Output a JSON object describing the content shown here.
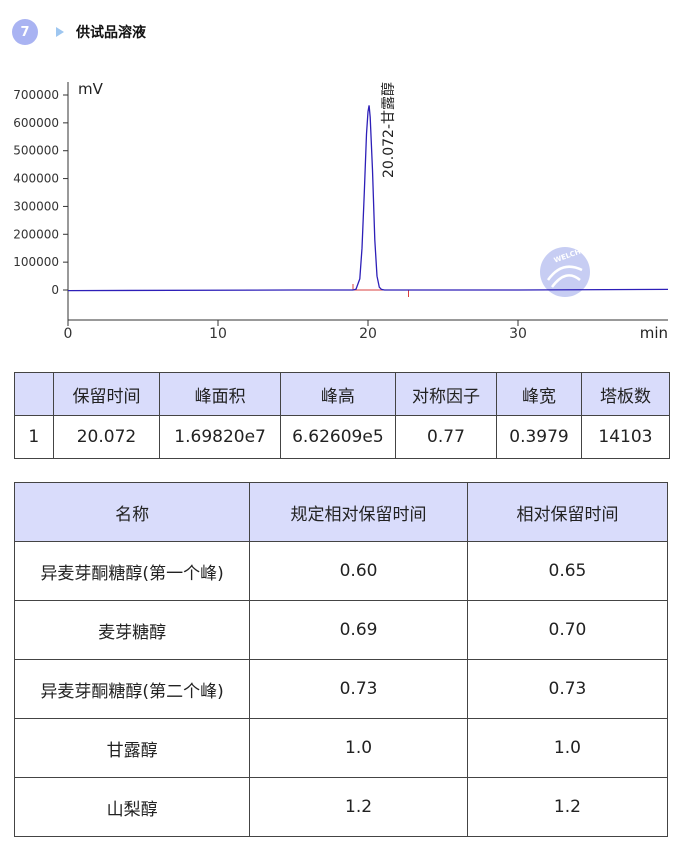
{
  "section": {
    "number": "7",
    "title": "供试品溶液"
  },
  "chart_data": {
    "type": "line",
    "xlabel": "min",
    "ylabel": "mV",
    "xlim": [
      0,
      40
    ],
    "ylim": [
      -100000,
      700000
    ],
    "x_ticks": [
      "0",
      "10",
      "20",
      "30"
    ],
    "y_ticks": [
      "700000",
      "600000",
      "500000",
      "400000",
      "300000",
      "200000",
      "100000",
      "0"
    ],
    "series": [
      {
        "color": "#2d1fb8",
        "x": [
          0,
          15,
          19.0,
          19.2,
          19.45,
          19.6,
          19.75,
          19.9,
          20.0,
          20.07,
          20.15,
          20.3,
          20.45,
          20.6,
          20.75,
          20.9,
          21.1,
          30,
          40
        ],
        "y": [
          -2000,
          0,
          0,
          3000,
          40000,
          150000,
          350000,
          560000,
          640000,
          662609,
          620000,
          430000,
          180000,
          50000,
          10000,
          2000,
          0,
          0,
          2000
        ]
      }
    ],
    "annotations": [
      {
        "x": 20.072,
        "text": "20.072-甘露醇"
      }
    ],
    "integration_color": "#d94040"
  },
  "watermark": "WELCH",
  "peak_table": {
    "headers": [
      "",
      "保留时间",
      "峰面积",
      "峰高",
      "对称因子",
      "峰宽",
      "塔板数"
    ],
    "rows": [
      [
        "1",
        "20.072",
        "1.69820e7",
        "6.62609e5",
        "0.77",
        "0.3979",
        "14103"
      ]
    ]
  },
  "rel_table": {
    "headers": [
      "名称",
      "规定相对保留时间",
      "相对保留时间"
    ],
    "rows": [
      [
        "异麦芽酮糖醇(第一个峰)",
        "0.60",
        "0.65"
      ],
      [
        "麦芽糖醇",
        "0.69",
        "0.70"
      ],
      [
        "异麦芽酮糖醇(第二个峰)",
        "0.73",
        "0.73"
      ],
      [
        "甘露醇",
        "1.0",
        "1.0"
      ],
      [
        "山梨醇",
        "1.2",
        "1.2"
      ]
    ]
  }
}
